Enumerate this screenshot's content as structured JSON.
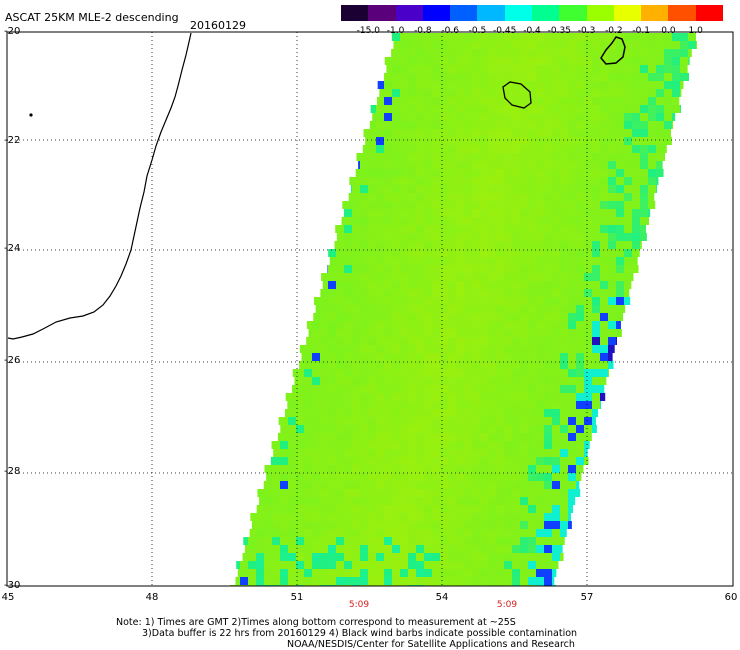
{
  "header": {
    "title": "ASCAT 25KM MLE-2 descending",
    "date": "20160129"
  },
  "color_scale": {
    "tick_labels": [
      "-15.0",
      "-1.0",
      "-0.8",
      "-0.6",
      "-0.5",
      "-0.45",
      "-0.4",
      "-0.35",
      "-0.3",
      "-0.2",
      "-0.1",
      "0.0",
      "1.0"
    ],
    "colors": [
      "#1a0033",
      "#5a007a",
      "#4a00c8",
      "#0000ff",
      "#0060ff",
      "#00b8ff",
      "#00ffe8",
      "#00ff90",
      "#40ff30",
      "#9cff00",
      "#e8ff00",
      "#ffb000",
      "#ff5000",
      "#ff0000"
    ]
  },
  "axes": {
    "lat_labels": [
      "-20",
      "-22",
      "-24",
      "-26",
      "-28",
      "-30"
    ],
    "lon_labels": [
      "45",
      "48",
      "51",
      "54",
      "57",
      "60"
    ]
  },
  "times": [
    "5:09",
    "5:09"
  ],
  "notes": {
    "line1": "Note: 1) Times are GMT 2)Times along bottom correspond to measurement at ~25S",
    "line2": "3)Data buffer is 22 hrs from 20160129 4) Black wind barbs indicate possible contamination",
    "line3": "NOAA/NESDIS/Center for Satellite Applications and Research"
  },
  "palette": {
    "swath_base": "#7cf21c",
    "swath_center": "#96f010",
    "swath_edge": "#20f080",
    "edge_cyan": "#10f0d0",
    "edge_blue": "#1040ff",
    "edge_navy": "#2010c0",
    "coast": "#000000",
    "grid": "#000000"
  }
}
